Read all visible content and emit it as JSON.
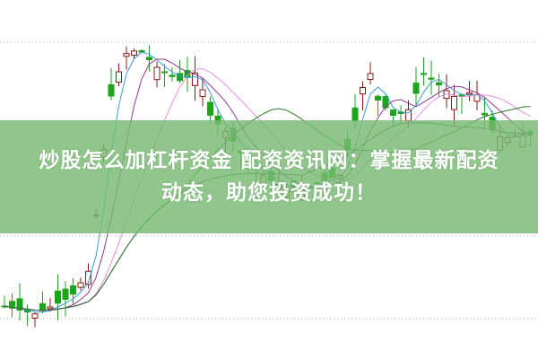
{
  "banner": {
    "line1": "炒股怎么加杠杆资金 配资资讯网：掌握最新配资",
    "line2": "动态，助您投资成功！",
    "background": "#78b973"
  },
  "chart_style": {
    "up_color": "#8b1a1a",
    "down_color": "#1aa51a",
    "ma_colors": [
      "#3a9ad9",
      "#8e3a8e",
      "#e48fd8",
      "#2a7a2a",
      "#3a6a3a"
    ],
    "grid_color": "#9aa"
  }
}
